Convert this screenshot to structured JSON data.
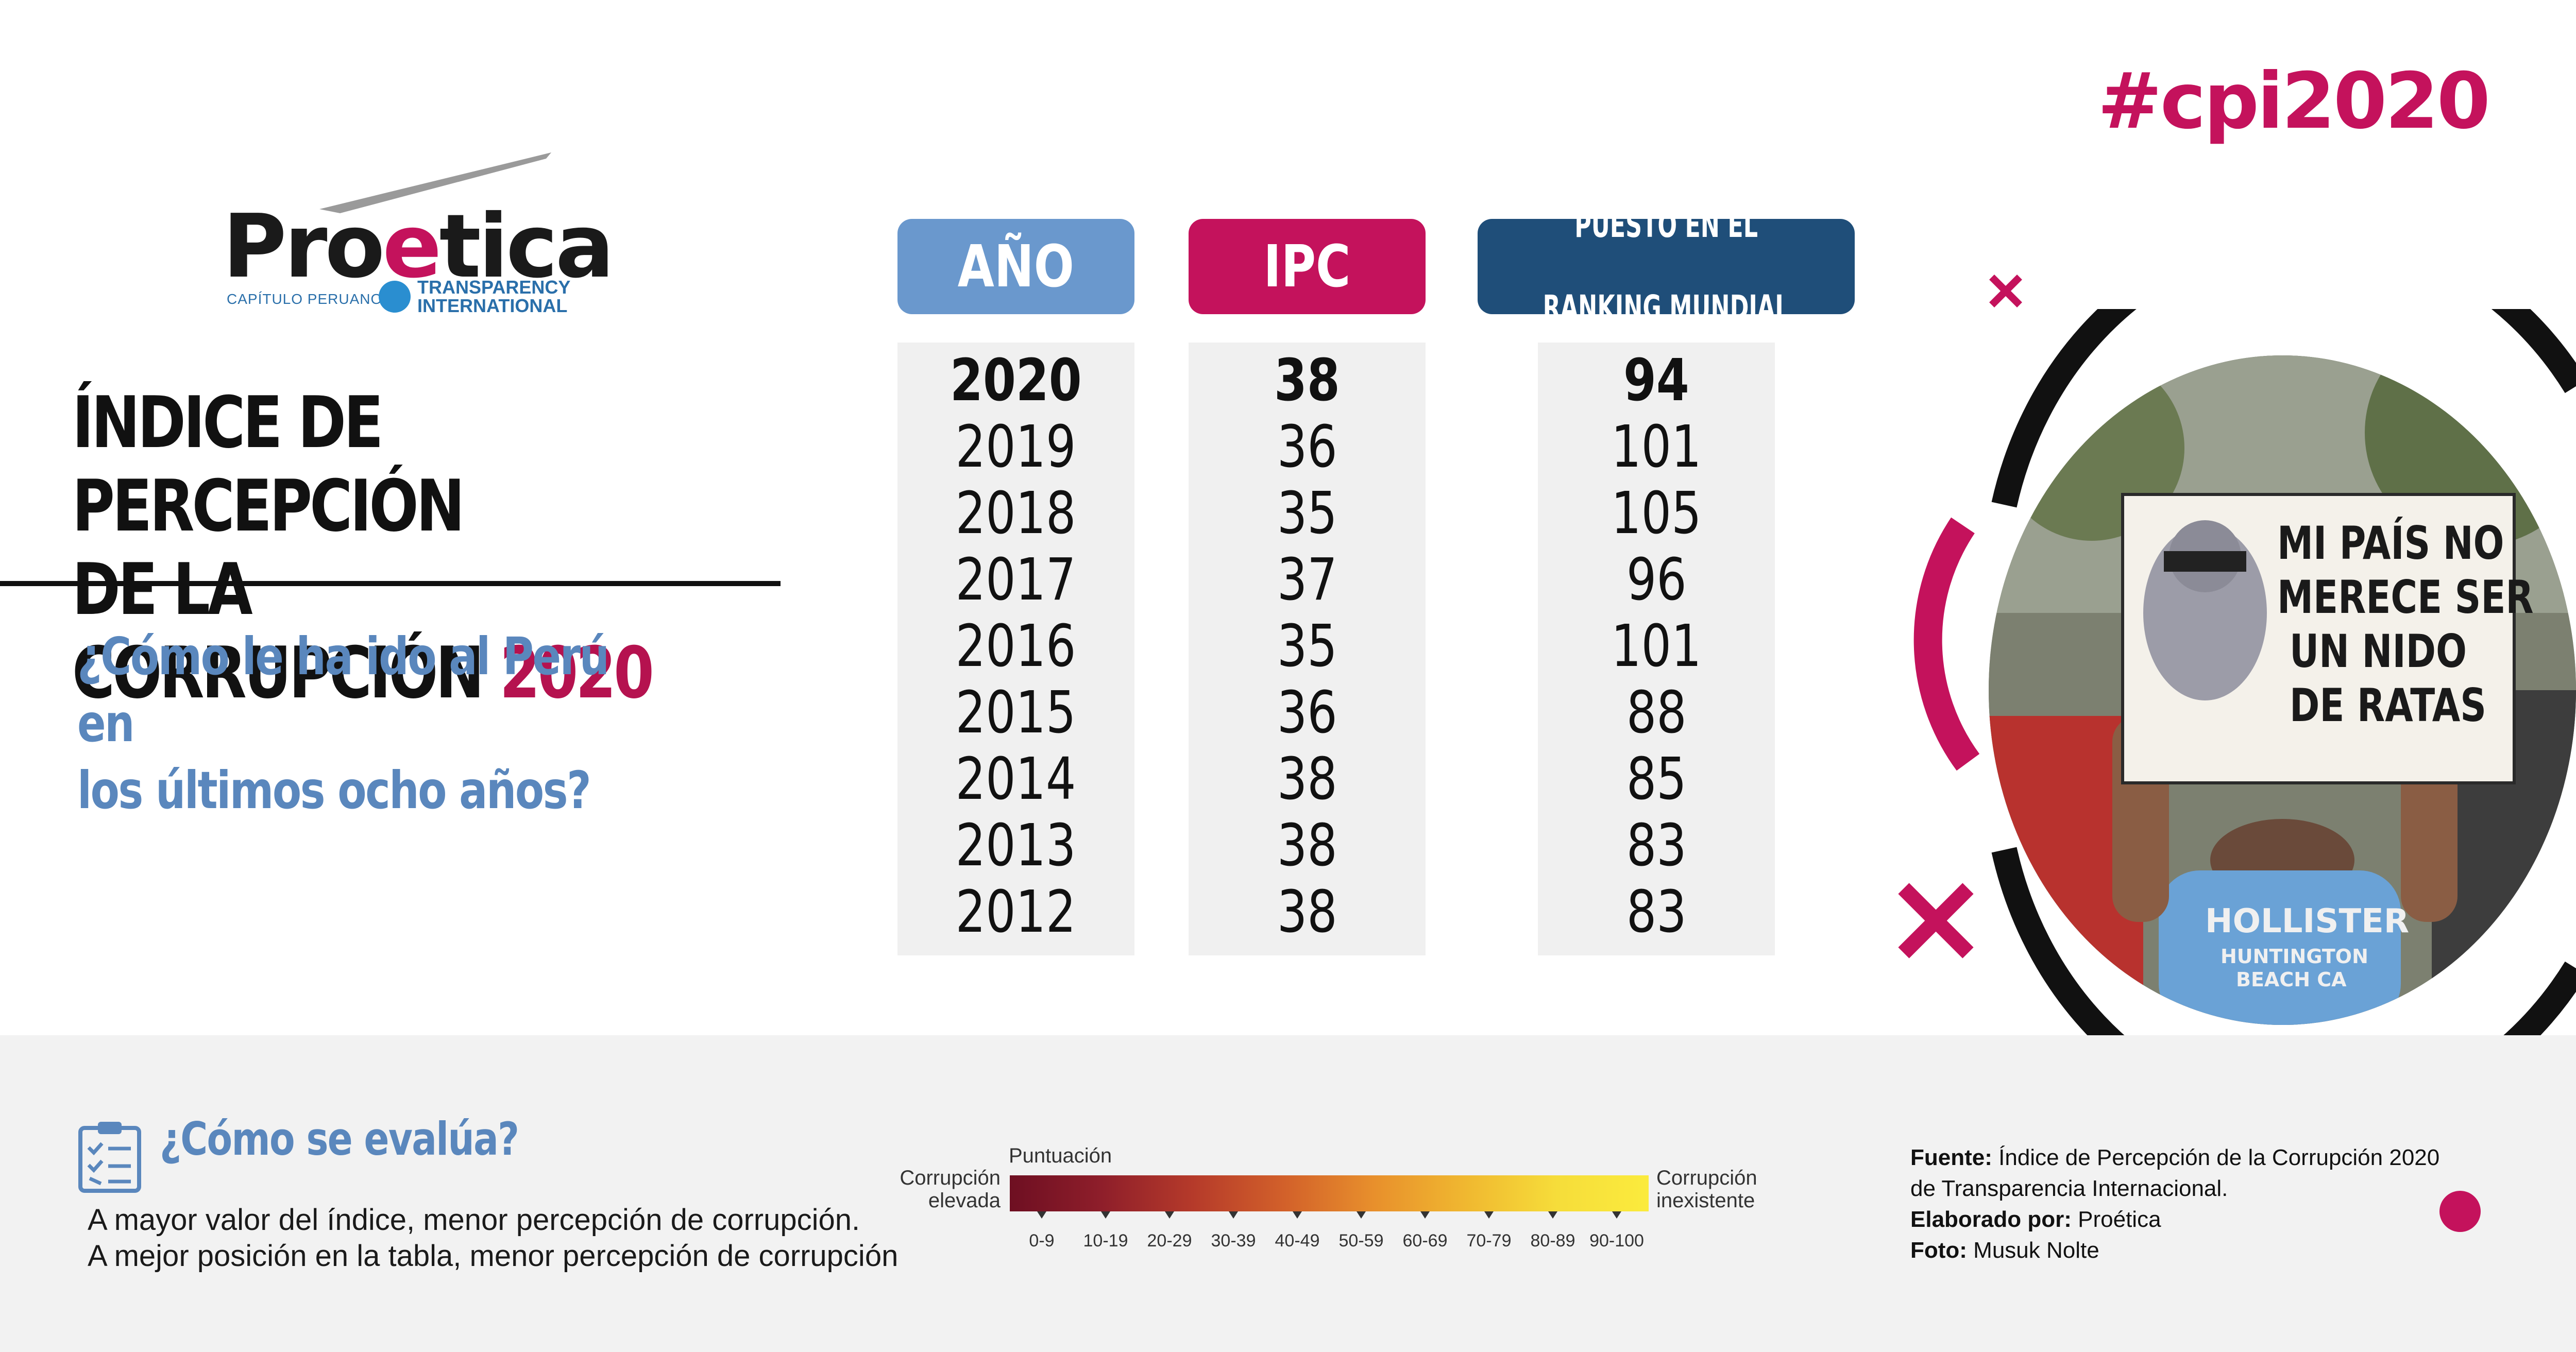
{
  "hashtag": "#cpi2020",
  "logo": {
    "name_pre": "Pro",
    "name_e": "e",
    "name_post": "tica",
    "subline": "CAPÍTULO PERUANO DE",
    "ti_line1": "TRANSPARENCY",
    "ti_line2": "INTERNATIONAL"
  },
  "title": {
    "line1": "ÍNDICE DE PERCEPCIÓN",
    "line2": "DE LA CORRUPCIÓN",
    "year": "2020"
  },
  "subtitle": {
    "line1": "¿Cómo le ha ido al Perú en",
    "line2": "los últimos ocho años?"
  },
  "table": {
    "headers": {
      "year": "AÑO",
      "ipc": "IPC",
      "rank_line1": "PUESTO EN EL",
      "rank_line2": "RANKING MUNDIAL"
    },
    "years": [
      "2020",
      "2019",
      "2018",
      "2017",
      "2016",
      "2015",
      "2014",
      "2013",
      "2012"
    ],
    "ipc": [
      "38",
      "36",
      "35",
      "37",
      "35",
      "36",
      "38",
      "38",
      "38"
    ],
    "rank": [
      "94",
      "101",
      "105",
      "96",
      "101",
      "88",
      "85",
      "83",
      "83"
    ]
  },
  "photo_sign": {
    "line1": "MI PAÍS NO",
    "line2": "MERECE SER",
    "line3": "UN NIDO",
    "line4": "DE RATAS",
    "shirt_line1": "HOLLISTER",
    "shirt_line2": "HUNTINGTON",
    "shirt_line3": "BEACH CA"
  },
  "how": {
    "title": "¿Cómo se evalúa?",
    "line1": "A mayor valor del índice, menor percepción de corrupción.",
    "line2": "A mejor posición en la tabla, menor percepción de corrupción"
  },
  "scale": {
    "title": "Puntuación",
    "left_line1": "Corrupción",
    "left_line2": "elevada",
    "right_line1": "Corrupción",
    "right_line2": "inexistente",
    "ticks": [
      "0-9",
      "10-19",
      "20-29",
      "30-39",
      "40-49",
      "50-59",
      "60-69",
      "70-79",
      "80-89",
      "90-100"
    ]
  },
  "source": {
    "fuente_label": "Fuente:",
    "fuente_text": "Índice de Percepción de la Corrupción 2020",
    "fuente_text2": "de Transparencia Internacional.",
    "elab_label": "Elaborado por:",
    "elab_text": "Proética",
    "foto_label": "Foto:",
    "foto_text": "Musuk Nolte"
  },
  "colors": {
    "accent": "#c4125c",
    "blue_light": "#6a98cd",
    "navy": "#1f4e79",
    "subtitle_blue": "#5a87bd"
  }
}
